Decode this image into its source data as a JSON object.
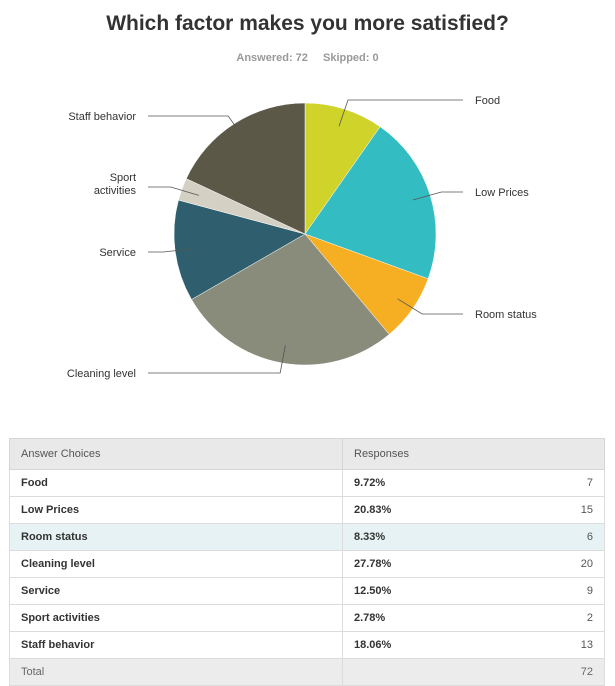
{
  "header": {
    "title": "Which factor makes you more satisfied?",
    "answered": "Answered: 72",
    "skipped": "Skipped: 0"
  },
  "chart_data": {
    "type": "pie",
    "title": "Which factor makes you more satisfied?",
    "slices": [
      {
        "label": "Food",
        "value": 7,
        "color": "#cfd32a"
      },
      {
        "label": "Low Prices",
        "value": 15,
        "color": "#33bdc2"
      },
      {
        "label": "Room status",
        "value": 6,
        "color": "#f6af22"
      },
      {
        "label": "Cleaning level",
        "value": 20,
        "color": "#898b7b"
      },
      {
        "label": "Service",
        "value": 9,
        "color": "#2f5f6e"
      },
      {
        "label": "Sport activities",
        "value": 2,
        "color": "#d4d0c3"
      },
      {
        "label": "Staff behavior",
        "value": 13,
        "color": "#5c5848"
      }
    ]
  },
  "table": {
    "headers": [
      "Answer Choices",
      "Responses"
    ],
    "rows": [
      {
        "choice": "Food",
        "pct": "9.72%",
        "count": "7"
      },
      {
        "choice": "Low Prices",
        "pct": "20.83%",
        "count": "15"
      },
      {
        "choice": "Room status",
        "pct": "8.33%",
        "count": "6"
      },
      {
        "choice": "Cleaning level",
        "pct": "27.78%",
        "count": "20"
      },
      {
        "choice": "Service",
        "pct": "12.50%",
        "count": "9"
      },
      {
        "choice": "Sport activities",
        "pct": "2.78%",
        "count": "2"
      },
      {
        "choice": "Staff behavior",
        "pct": "18.06%",
        "count": "13"
      }
    ],
    "total_label": "Total",
    "total_value": "72"
  }
}
